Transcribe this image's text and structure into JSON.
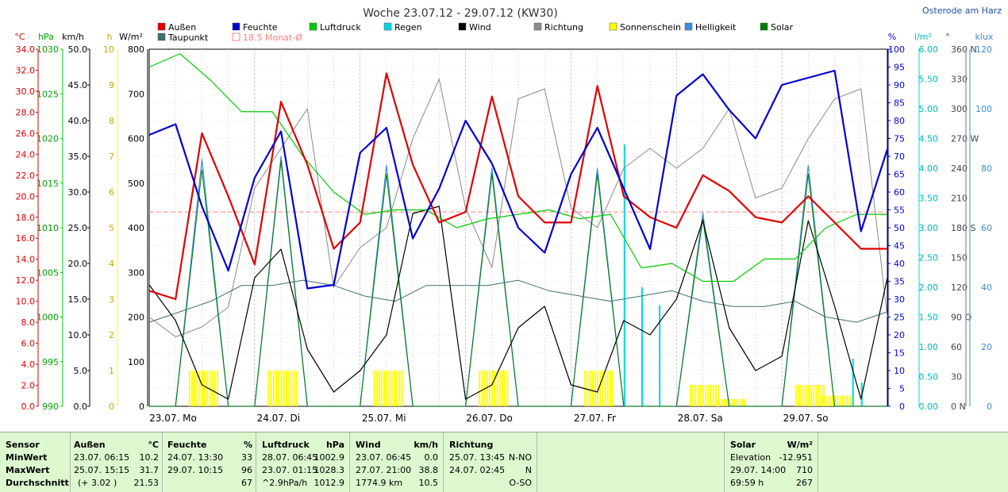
{
  "title": "Woche 23.07.12 - 29.07.12 (KW30)",
  "station": "Osterode am Harz",
  "colors": {
    "aussen": "#e00000",
    "feuchte": "#0000d0",
    "luftdruck": "#00cc00",
    "regen": "#00d8e0",
    "wind": "#000000",
    "richtung": "#8a8a8a",
    "sonnenschein": "#ffff00",
    "helligkeit": "#3d8fd6",
    "solar": "#007a00",
    "taupunkt": "#3f6f6f",
    "monat": "#ff8080",
    "grid": "#a8a8a8"
  },
  "legend": [
    {
      "key": "aussen",
      "label": "Außen"
    },
    {
      "key": "feuchte",
      "label": "Feuchte"
    },
    {
      "key": "luftdruck",
      "label": "Luftdruck"
    },
    {
      "key": "regen",
      "label": "Regen"
    },
    {
      "key": "wind",
      "label": "Wind"
    },
    {
      "key": "richtung",
      "label": "Richtung"
    },
    {
      "key": "sonnenschein",
      "label": "Sonnenschein"
    },
    {
      "key": "helligkeit",
      "label": "Helligkeit"
    },
    {
      "key": "solar",
      "label": "Solar"
    },
    {
      "key": "taupunkt",
      "label": "Taupunkt"
    },
    {
      "key": "monat",
      "label": "18.5 Monat-Ø"
    }
  ],
  "axis_units_left": [
    "°C",
    "hPa",
    "km/h",
    "h",
    "W/m²"
  ],
  "axis_units_right": [
    "%",
    "l/m²",
    "°",
    "klux"
  ],
  "axis_ticks": {
    "temp": [
      "34.0",
      "32.0",
      "30.0",
      "28.0",
      "26.0",
      "24.0",
      "22.0",
      "20.0",
      "18.0",
      "16.0",
      "14.0",
      "12.0",
      "10.0",
      "8.0",
      "6.0",
      "4.0",
      "2.0",
      "0.0"
    ],
    "hpa": [
      "1030",
      "1025",
      "1020",
      "1015",
      "1010",
      "1005",
      "1000",
      "995",
      "990"
    ],
    "kmh": [
      "50.0",
      "45.0",
      "40.0",
      "35.0",
      "30.0",
      "25.0",
      "20.0",
      "15.0",
      "10.0",
      "5.0",
      "0.0"
    ],
    "hours": [
      "10",
      "9",
      "8",
      "7",
      "6",
      "5",
      "4",
      "3",
      "2",
      "1",
      "0"
    ],
    "wm2": [
      "800",
      "700",
      "600",
      "500",
      "400",
      "300",
      "200",
      "100",
      "0"
    ],
    "pct": [
      "100",
      "95",
      "90",
      "85",
      "80",
      "75",
      "70",
      "65",
      "60",
      "55",
      "50",
      "45",
      "40",
      "35",
      "30",
      "25",
      "20",
      "15",
      "10",
      "5",
      "0"
    ],
    "lm2": [
      "6.00",
      "5.50",
      "5.00",
      "4.50",
      "4.00",
      "3.50",
      "3.00",
      "2.50",
      "2.00",
      "1.50",
      "1.00",
      "0.50",
      "0.00"
    ],
    "deg": [
      "360 N",
      "330",
      "300",
      "270 W",
      "240",
      "210",
      "180 S",
      "150",
      "120",
      "90 O",
      "60",
      "30",
      "0 N"
    ],
    "klux": [
      "120",
      "100",
      "80",
      "60",
      "40",
      "20",
      "0"
    ]
  },
  "chart_data": {
    "type": "line",
    "title": "Woche 23.07.12 - 29.07.12 (KW30)",
    "x_labels": [
      "23.07. Mo",
      "24.07. Di",
      "25.07. Mi",
      "26.07. Do",
      "27.07. Fr",
      "28.07. Sa",
      "29.07. So"
    ],
    "x_hours": [
      0,
      6,
      12,
      18,
      24,
      30,
      36,
      42,
      48,
      54,
      60,
      66,
      72,
      78,
      84,
      90,
      96,
      102,
      108,
      114,
      120,
      126,
      132,
      138,
      144,
      150,
      156,
      162,
      168
    ],
    "monthly_avg_temp": 18.5,
    "series": [
      {
        "name": "Außen",
        "unit": "°C",
        "values": [
          11.0,
          10.2,
          26.0,
          20.0,
          13.5,
          29.0,
          23.0,
          15.0,
          17.5,
          31.7,
          23.0,
          17.5,
          18.5,
          29.5,
          20.0,
          17.5,
          17.5,
          30.5,
          20.0,
          18.0,
          17.0,
          22.0,
          20.5,
          18.0,
          17.5,
          20.0,
          17.5,
          15.0,
          15.0
        ]
      },
      {
        "name": "Feuchte",
        "unit": "%",
        "values": [
          76,
          79,
          56,
          38,
          64,
          77,
          33,
          34,
          71,
          78,
          47,
          61,
          80,
          68,
          50,
          43,
          65,
          78,
          61,
          44,
          87,
          93,
          83,
          75,
          90,
          92,
          94,
          49,
          72
        ]
      },
      {
        "name": "Luftdruck",
        "unit": "hPa",
        "values": [
          1028.0,
          1029.5,
          1026.5,
          1023.0,
          1023.0,
          1018.0,
          1014.0,
          1011.5,
          1012.0,
          1012.0,
          1010.0,
          1011.0,
          1011.5,
          1012.0,
          1011.0,
          1011.5,
          1005.5,
          1006.0,
          1004.0,
          1004.0,
          1006.5,
          1006.5,
          1010.0,
          1011.5,
          1011.5
        ]
      },
      {
        "name": "Taupunkt",
        "unit": "°C",
        "values": [
          8.0,
          9.0,
          10.0,
          11.5,
          11.5,
          12.0,
          11.5,
          10.5,
          10.0,
          11.5,
          11.5,
          11.5,
          12.0,
          11.0,
          10.5,
          10.0,
          10.5,
          11.0,
          10.0,
          9.5,
          9.5,
          10.0,
          8.5,
          8.0,
          9.0
        ]
      },
      {
        "name": "Wind",
        "unit": "km/h",
        "values": [
          17,
          12,
          3,
          1,
          18,
          22,
          8,
          2,
          5,
          10,
          27,
          28,
          1,
          3,
          11,
          14,
          3,
          2,
          12,
          10,
          15,
          26,
          11,
          5,
          7,
          26,
          14,
          1,
          18
        ]
      },
      {
        "name": "Richtung",
        "unit": "°",
        "values": [
          90,
          70,
          80,
          100,
          220,
          260,
          300,
          120,
          160,
          180,
          270,
          330,
          200,
          140,
          310,
          320,
          200,
          180,
          240,
          260,
          240,
          260,
          300,
          210,
          220,
          270,
          310,
          320,
          90
        ]
      },
      {
        "name": "Solar",
        "unit": "W/m²",
        "values": [
          0,
          0,
          530,
          0,
          0,
          550,
          0,
          0,
          0,
          520,
          0,
          0,
          0,
          520,
          0,
          0,
          0,
          520,
          0,
          0,
          0,
          420,
          0,
          0,
          0,
          520,
          0,
          0,
          0
        ]
      },
      {
        "name": "Helligkeit",
        "unit": "klux",
        "values": [
          0,
          0,
          83,
          0,
          0,
          84,
          0,
          0,
          0,
          81,
          0,
          0,
          0,
          80,
          0,
          0,
          0,
          80,
          0,
          0,
          0,
          65,
          0,
          0,
          0,
          81,
          0,
          0,
          0
        ]
      },
      {
        "name": "Sonnenschein",
        "unit": "h",
        "values": [
          0,
          0,
          1,
          0,
          0,
          1,
          0,
          0,
          0,
          1,
          0,
          0,
          0,
          1,
          0,
          0,
          0,
          1,
          0,
          0,
          0,
          0.6,
          0.2,
          0,
          0,
          0.6,
          0.3,
          0,
          0
        ]
      },
      {
        "name": "Regen",
        "unit": "l/m²",
        "events": [
          {
            "x": 108,
            "y": 4.4
          },
          {
            "x": 112,
            "y": 2.0
          },
          {
            "x": 116,
            "y": 1.7
          },
          {
            "x": 160,
            "y": 0.8
          },
          {
            "x": 162,
            "y": 0.4
          }
        ]
      }
    ]
  },
  "stats": {
    "sensor": {
      "header": "Sensor",
      "rows": [
        "MinWert",
        "MaxWert",
        "Durchschnitt"
      ]
    },
    "aussen": {
      "header": "Außen",
      "unit": "°C",
      "rows": [
        [
          "23.07.  06:15",
          "10.2"
        ],
        [
          "25.07.  15:15",
          "31.7"
        ],
        [
          "(+ 3.02 )",
          "21.53"
        ]
      ]
    },
    "feuchte": {
      "header": "Feuchte",
      "unit": "%",
      "rows": [
        [
          "24.07.  13:30",
          "33"
        ],
        [
          "29.07.  10:15",
          "96"
        ],
        [
          "",
          "67"
        ]
      ]
    },
    "luftdruck": {
      "header": "Luftdruck",
      "unit": "hPa",
      "rows": [
        [
          "28.07.  06:45",
          "1002.9"
        ],
        [
          "23.07.  01:15",
          "1028.3"
        ],
        [
          "^2.9hPa/h",
          "1012.9"
        ]
      ]
    },
    "wind": {
      "header": "Wind",
      "unit": "km/h",
      "rows": [
        [
          "23.07.  06:45",
          "0.0"
        ],
        [
          "27.07.  21:00",
          "38.8"
        ],
        [
          "1774.9 km",
          "10.5"
        ]
      ]
    },
    "richtung": {
      "header": "Richtung",
      "rows": [
        [
          "25.07.  13:45",
          "N-NO"
        ],
        [
          "24.07.  02:45",
          "N"
        ],
        [
          "",
          "O-SO"
        ]
      ]
    },
    "solar": {
      "header": "Solar",
      "unit": "W/m²",
      "rows": [
        [
          "Elevation",
          "-12.951"
        ],
        [
          "29.07.  14:00",
          "710"
        ],
        [
          "69:59 h",
          "267"
        ]
      ]
    }
  }
}
